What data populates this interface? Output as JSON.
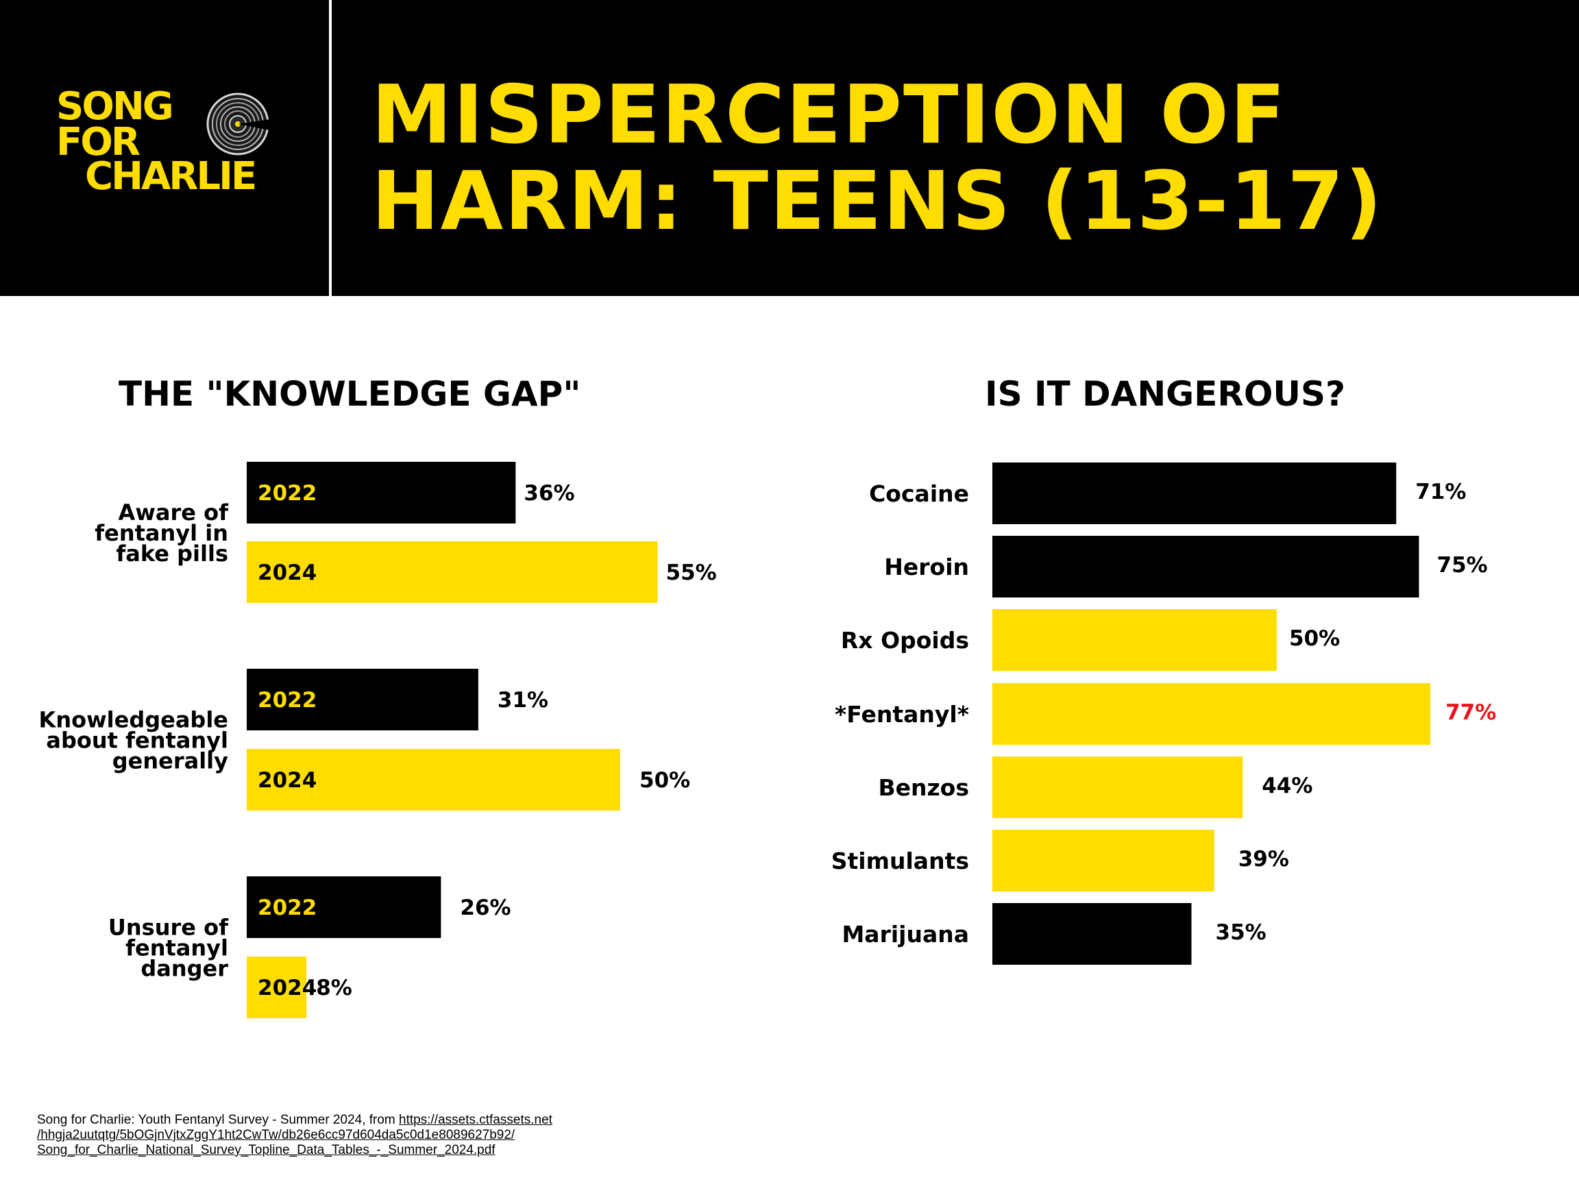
{
  "colors": {
    "black": "#000000",
    "yellow": "#FFDD00",
    "white": "#FFFFFF",
    "highlight": "#E8141B"
  },
  "logo": {
    "line1": "SONG",
    "line2": "FOR",
    "line3": "CHARLIE",
    "icon": "vinyl-record-icon"
  },
  "title": {
    "line1": "MISPERCEPTION OF",
    "line2": "HARM: TEENS (13-17)"
  },
  "chart_data": [
    {
      "type": "bar",
      "orientation": "horizontal",
      "title": "THE \"KNOWLEDGE GAP\"",
      "categories": [
        [
          "Aware of",
          "fentanyl in",
          "fake pills"
        ],
        [
          "Knowledgeable",
          "about fentanyl",
          "generally"
        ],
        [
          "Unsure of",
          "fentanyl",
          "danger"
        ]
      ],
      "series": [
        {
          "name": "2022",
          "values": [
            36,
            31,
            26
          ],
          "color": "#000000",
          "label_color": "#FFDD00"
        },
        {
          "name": "2024",
          "values": [
            55,
            50,
            8
          ],
          "color": "#FFDD00",
          "label_color": "#000000"
        }
      ],
      "value_labels": [
        [
          "36%",
          "31%",
          "26%"
        ],
        [
          "55%",
          "50%",
          "8%"
        ]
      ],
      "unit": "%",
      "grid": false,
      "legend": "none"
    },
    {
      "type": "bar",
      "orientation": "horizontal",
      "title": "IS IT DANGEROUS?",
      "categories": [
        "Cocaine",
        "Heroin",
        "Rx Opoids",
        "*Fentanyl*",
        "Benzos",
        "Stimulants",
        "Marijuana"
      ],
      "values": [
        71,
        75,
        50,
        77,
        44,
        39,
        35
      ],
      "value_labels": [
        "71%",
        "75%",
        "50%",
        "77%",
        "44%",
        "39%",
        "35%"
      ],
      "bar_colors": [
        "#000000",
        "#000000",
        "#FFDD00",
        "#FFDD00",
        "#FFDD00",
        "#FFDD00",
        "#000000"
      ],
      "label_colors": [
        "#000000",
        "#000000",
        "#000000",
        "#E8141B",
        "#000000",
        "#000000",
        "#000000"
      ],
      "unit": "%",
      "grid": false,
      "legend": "none"
    }
  ],
  "source": {
    "text": "Song for Charlie: Youth Fentanyl Survey - Summer 2024, from ",
    "link_line1": "https://assets.ctfassets.net",
    "link_line2": "/hhgja2uutqtg/5bOGjnVjtxZggY1ht2CwTw/db26e6cc97d604da5c0d1e8089627b92/",
    "link_line3": "Song_for_Charlie_National_Survey_Topline_Data_Tables_-_Summer_2024.pdf"
  }
}
